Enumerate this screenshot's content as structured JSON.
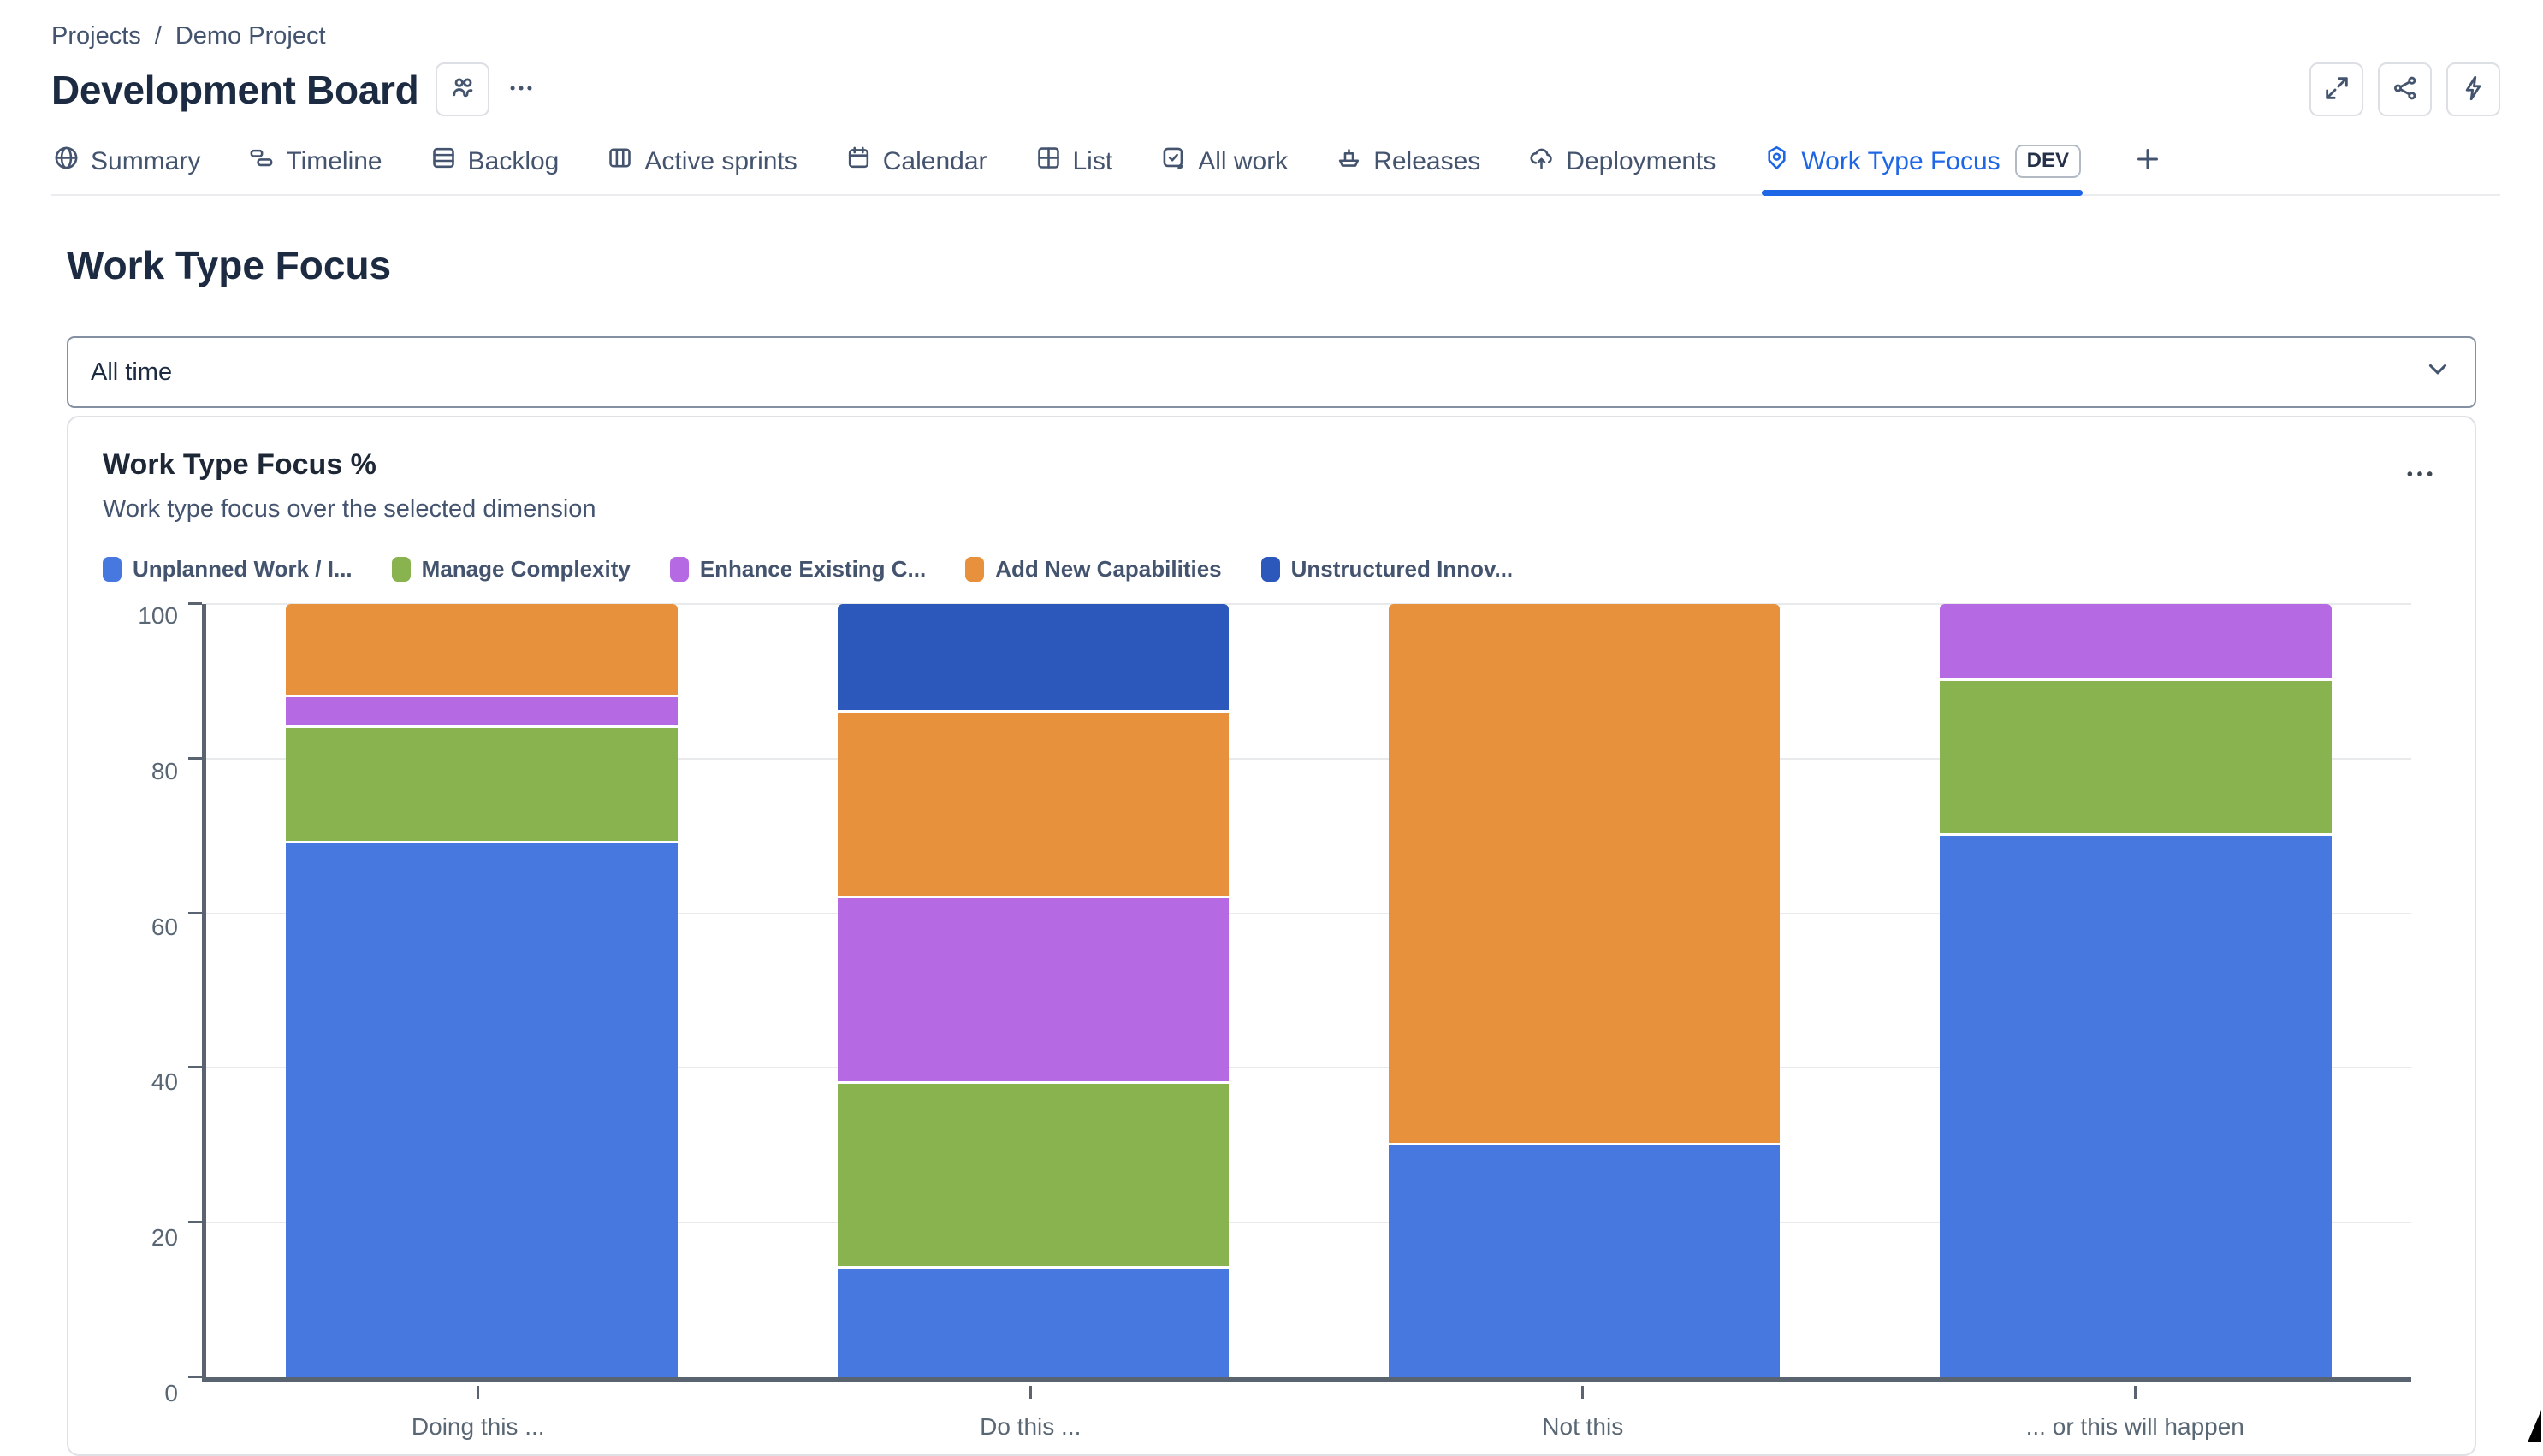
{
  "breadcrumb": {
    "projects": "Projects",
    "separator": "/",
    "project": "Demo Project"
  },
  "header": {
    "title": "Development Board",
    "actions": [
      {
        "name": "expand-button",
        "icon": "expand-icon"
      },
      {
        "name": "share-button",
        "icon": "share-icon"
      },
      {
        "name": "automation-button",
        "icon": "lightning-icon"
      }
    ]
  },
  "tabs": [
    {
      "label": "Summary",
      "icon": "globe-icon",
      "active": false
    },
    {
      "label": "Timeline",
      "icon": "timeline-icon",
      "active": false
    },
    {
      "label": "Backlog",
      "icon": "backlog-icon",
      "active": false
    },
    {
      "label": "Active sprints",
      "icon": "board-icon",
      "active": false
    },
    {
      "label": "Calendar",
      "icon": "calendar-icon",
      "active": false
    },
    {
      "label": "List",
      "icon": "grid-icon",
      "active": false
    },
    {
      "label": "All work",
      "icon": "task-icon",
      "active": false
    },
    {
      "label": "Releases",
      "icon": "ship-icon",
      "active": false
    },
    {
      "label": "Deployments",
      "icon": "cloud-upload-icon",
      "active": false
    },
    {
      "label": "Work Type Focus",
      "icon": "focus-icon",
      "active": true,
      "badge": "DEV"
    }
  ],
  "page": {
    "title": "Work Type Focus"
  },
  "filter": {
    "value": "All time"
  },
  "card": {
    "title": "Work Type Focus %",
    "subtitle": "Work type focus over the selected dimension"
  },
  "colors": {
    "accent_blue": "#1d66e5",
    "axis": "#5a6370",
    "gridline": "#e9eaec"
  },
  "chart_data": {
    "type": "bar",
    "stacked": true,
    "title": "Work Type Focus %",
    "xlabel": "",
    "ylabel": "",
    "ylim": [
      0,
      100
    ],
    "yticks": [
      0,
      20,
      40,
      60,
      80,
      100
    ],
    "grid": true,
    "legend_position": "top",
    "categories": [
      "Doing this ...",
      "Do this ...",
      "Not this",
      "... or this will happen"
    ],
    "series": [
      {
        "name": "Unplanned Work / I...",
        "color": "#4678df",
        "values": [
          69,
          14,
          30,
          70
        ]
      },
      {
        "name": "Manage Complexity",
        "color": "#88b34e",
        "values": [
          15,
          24,
          0,
          20
        ]
      },
      {
        "name": "Enhance Existing C...",
        "color": "#b56ae4",
        "values": [
          4,
          24,
          0,
          10
        ]
      },
      {
        "name": "Add New Capabilities",
        "color": "#e8913c",
        "values": [
          12,
          24,
          70,
          0
        ]
      },
      {
        "name": "Unstructured Innov...",
        "color": "#2b58ba",
        "values": [
          0,
          14,
          0,
          0
        ]
      }
    ]
  }
}
